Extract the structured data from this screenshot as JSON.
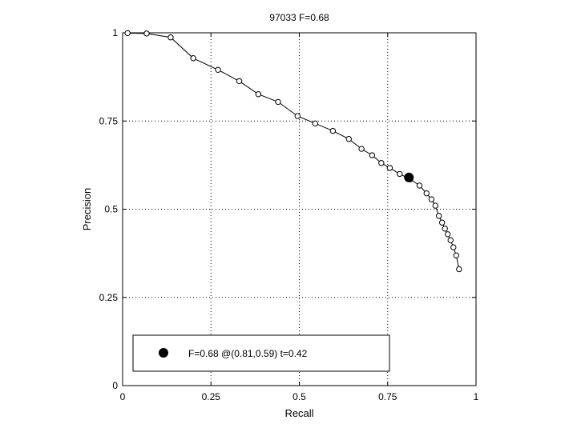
{
  "chart_data": {
    "type": "line",
    "title": "97033 F=0.68",
    "xlabel": "Recall",
    "ylabel": "Precision",
    "xlim": [
      0,
      1
    ],
    "ylim": [
      0,
      1
    ],
    "grid": true,
    "x_ticks": [
      0,
      0.25,
      0.5,
      0.75,
      1
    ],
    "y_ticks": [
      0,
      0.25,
      0.5,
      0.75,
      1
    ],
    "x_tick_labels": [
      "0",
      "0.25",
      "0.5",
      "0.75",
      "1"
    ],
    "y_tick_labels": [
      "0",
      "0.25",
      "0.5",
      "0.75",
      "1"
    ],
    "series": [
      {
        "marker": "open-circle",
        "color": "#000000",
        "x": [
          0.014,
          0.068,
          0.136,
          0.2,
          0.27,
          0.33,
          0.384,
          0.44,
          0.495,
          0.545,
          0.595,
          0.64,
          0.676,
          0.706,
          0.732,
          0.756,
          0.784,
          0.814,
          0.84,
          0.86,
          0.874,
          0.885,
          0.895,
          0.904,
          0.912,
          0.92,
          0.928,
          0.936,
          0.944,
          0.952
        ],
        "y": [
          0.999,
          0.998,
          0.987,
          0.928,
          0.895,
          0.863,
          0.826,
          0.804,
          0.764,
          0.743,
          0.722,
          0.699,
          0.671,
          0.653,
          0.631,
          0.617,
          0.6,
          0.585,
          0.567,
          0.545,
          0.528,
          0.51,
          0.481,
          0.462,
          0.445,
          0.429,
          0.412,
          0.392,
          0.369,
          0.33
        ]
      }
    ],
    "highlight": {
      "x": 0.81,
      "y": 0.59,
      "marker": "filled-circle",
      "color": "#000000"
    },
    "legend": {
      "placement": "bottom-left",
      "text": "F=0.68 @(0.81,0.59) t=0.42"
    }
  }
}
